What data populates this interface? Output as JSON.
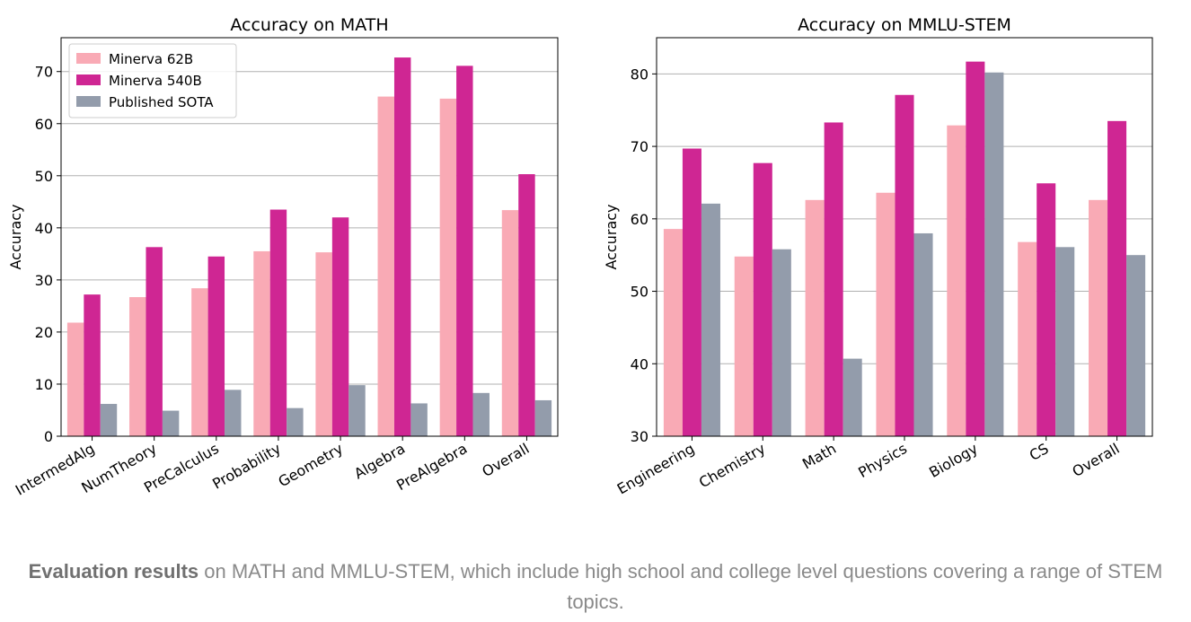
{
  "chart_data": [
    {
      "type": "bar",
      "title": "Accuracy on MATH",
      "xlabel": "",
      "ylabel": "Accuracy",
      "ylim": [
        0,
        76.5
      ],
      "yticks": [
        0,
        10,
        20,
        30,
        40,
        50,
        60,
        70
      ],
      "grid": "horizontal",
      "legend_position": "top-left",
      "categories": [
        "IntermedAlg",
        "NumTheory",
        "PreCalculus",
        "Probability",
        "Geometry",
        "Algebra",
        "PreAlgebra",
        "Overall"
      ],
      "series": [
        {
          "name": "Minerva 62B",
          "color": "#f9aab5",
          "values": [
            21.8,
            26.7,
            28.4,
            35.5,
            35.3,
            65.2,
            64.8,
            43.4
          ]
        },
        {
          "name": "Minerva 540B",
          "color": "#cf2693",
          "values": [
            27.2,
            36.3,
            34.5,
            43.5,
            42.0,
            72.7,
            71.1,
            50.3
          ]
        },
        {
          "name": "Published SOTA",
          "color": "#939cab",
          "values": [
            6.2,
            4.9,
            8.9,
            5.4,
            9.8,
            6.3,
            8.3,
            6.9
          ]
        }
      ]
    },
    {
      "type": "bar",
      "title": "Accuracy on MMLU-STEM",
      "xlabel": "",
      "ylabel": "Accuracy",
      "ylim": [
        30,
        85
      ],
      "yticks": [
        30,
        40,
        50,
        60,
        70,
        80
      ],
      "grid": "horizontal",
      "legend_position": "none",
      "categories": [
        "Engineering",
        "Chemistry",
        "Math",
        "Physics",
        "Biology",
        "CS",
        "Overall"
      ],
      "series": [
        {
          "name": "Minerva 62B",
          "color": "#f9aab5",
          "values": [
            58.6,
            54.8,
            62.6,
            63.6,
            72.9,
            56.8,
            62.6
          ]
        },
        {
          "name": "Minerva 540B",
          "color": "#cf2693",
          "values": [
            69.7,
            67.7,
            73.3,
            77.1,
            81.7,
            64.9,
            73.5
          ]
        },
        {
          "name": "Published SOTA",
          "color": "#939cab",
          "values": [
            62.1,
            55.8,
            40.7,
            58.0,
            80.2,
            56.1,
            55.0
          ]
        }
      ]
    }
  ],
  "caption": {
    "bold": "Evaluation results",
    "text": " on MATH and MMLU-STEM, which include high school and college level questions covering a range of STEM topics."
  }
}
